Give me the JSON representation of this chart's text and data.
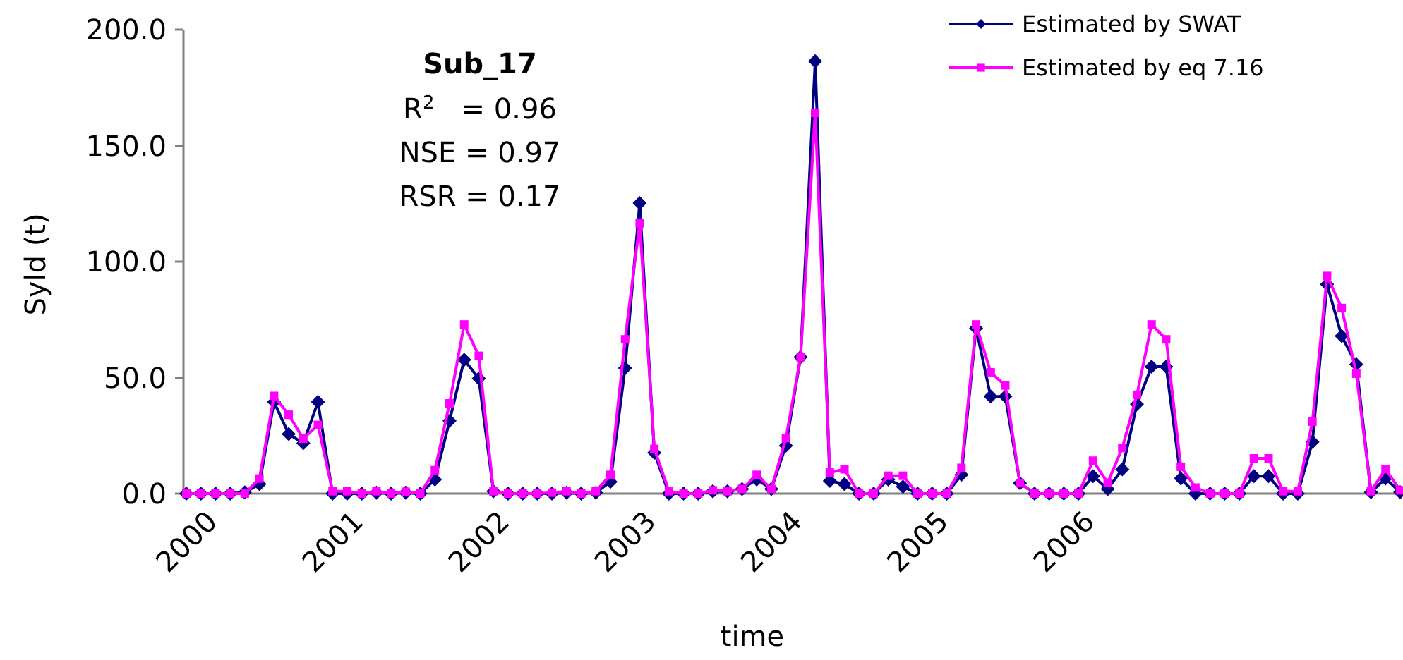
{
  "chart_data": {
    "type": "line",
    "title": "Sub_17",
    "annotations": [
      "R$^{2}$   = 0.96",
      "NSE = 0.97",
      "RSR = 0.17"
    ],
    "xlabel": "time",
    "ylabel": "Syld (t)",
    "categories": [
      "2000",
      null,
      null,
      null,
      null,
      null,
      null,
      null,
      null,
      null,
      "2001",
      null,
      null,
      null,
      null,
      null,
      null,
      null,
      null,
      null,
      "2002",
      null,
      null,
      null,
      null,
      null,
      null,
      null,
      null,
      null,
      "2003",
      null,
      null,
      null,
      null,
      null,
      null,
      null,
      null,
      null,
      "2004",
      null,
      null,
      null,
      null,
      null,
      null,
      null,
      null,
      null,
      "2005",
      null,
      null,
      null,
      null,
      null,
      null,
      null,
      null,
      null,
      "2006",
      null,
      null,
      null,
      null,
      null,
      null,
      null,
      null,
      null,
      null,
      null,
      null,
      null,
      null,
      null,
      null,
      null,
      null,
      null,
      null,
      null,
      null,
      null
    ],
    "series": [
      {
        "name": "Estimated by SWAT",
        "color": "#000080",
        "marker": "diamond",
        "values": [
          0,
          0,
          0,
          0,
          0.5,
          4.1,
          39.5,
          25.7,
          21.7,
          39.5,
          0,
          0,
          0,
          0.4,
          0,
          0.4,
          0,
          6.1,
          31.4,
          57.7,
          49.6,
          1,
          0,
          0,
          0,
          0,
          0.4,
          0,
          0.4,
          5.1,
          54.1,
          125.2,
          17.6,
          0,
          0,
          0,
          1,
          1,
          2,
          6.1,
          2,
          20.7,
          58.8,
          186.4,
          5.5,
          4.1,
          0,
          0,
          6.1,
          3,
          0,
          0,
          0,
          8.1,
          71.3,
          41.9,
          41.9,
          4.5,
          0,
          0,
          0,
          0,
          7.5,
          2,
          10.5,
          38.5,
          54.7,
          54.7,
          6.5,
          0,
          0,
          0,
          0,
          7.5,
          7.5,
          0,
          0,
          22.3,
          90.2,
          67.9,
          55.7,
          0.6,
          6.5,
          0.6
        ]
      },
      {
        "name": "Estimated by eq 7.16",
        "color": "#ff00ff",
        "marker": "square",
        "values": [
          0,
          0,
          0,
          0,
          0,
          6.5,
          42.1,
          34,
          23.7,
          29.6,
          1,
          1,
          0,
          1,
          0,
          0.8,
          0,
          10.1,
          38.9,
          72.9,
          59.4,
          1,
          0,
          0,
          0,
          0.4,
          1,
          0,
          1,
          8.1,
          66.5,
          116.5,
          19.3,
          1,
          0,
          0,
          1.4,
          1,
          2,
          8.1,
          2,
          23.9,
          58.8,
          164.1,
          9.1,
          10.5,
          0,
          0,
          7.7,
          7.7,
          0,
          0,
          0,
          11.1,
          72.9,
          52.3,
          46.6,
          4.5,
          0,
          0,
          0,
          0,
          14.2,
          4.7,
          19.7,
          42.6,
          72.9,
          66.5,
          11.6,
          2.6,
          0,
          0,
          0,
          15.2,
          15.2,
          1,
          1,
          31,
          93.8,
          80,
          51.7,
          1,
          10.5,
          1.4
        ]
      }
    ],
    "ylim": [
      0,
      200
    ],
    "yticks": [
      {
        "value": 0,
        "label": "0.0"
      },
      {
        "value": 50,
        "label": "50.0"
      },
      {
        "value": 100,
        "label": "100.0"
      },
      {
        "value": 150,
        "label": "150.0"
      },
      {
        "value": 200,
        "label": "200.0"
      }
    ],
    "legend": "top right",
    "line_style": "solid"
  }
}
